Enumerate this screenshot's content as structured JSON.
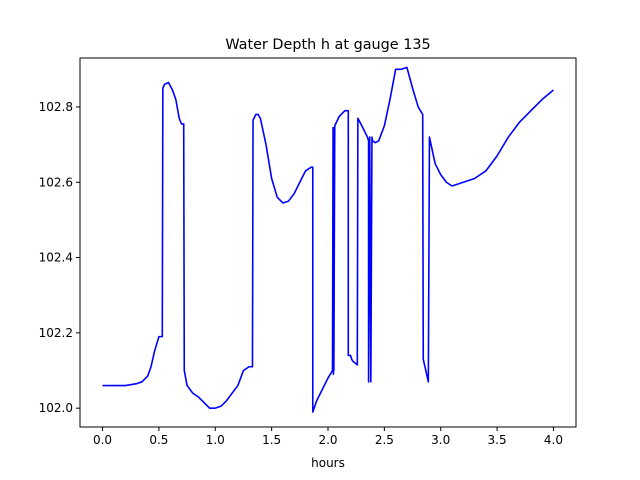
{
  "chart_data": {
    "type": "line",
    "title": "Water Depth h at gauge 135",
    "xlabel": "hours",
    "ylabel": "",
    "xlim": [
      -0.2,
      4.2
    ],
    "ylim": [
      101.95,
      102.93
    ],
    "xticks": [
      0.0,
      0.5,
      1.0,
      1.5,
      2.0,
      2.5,
      3.0,
      3.5,
      4.0
    ],
    "xtick_labels": [
      "0.0",
      "0.5",
      "1.0",
      "1.5",
      "2.0",
      "2.5",
      "3.0",
      "3.5",
      "4.0"
    ],
    "yticks": [
      102.0,
      102.2,
      102.4,
      102.6,
      102.8
    ],
    "ytick_labels": [
      "102.0",
      "102.2",
      "102.4",
      "102.6",
      "102.8"
    ],
    "grid": false,
    "line_color": "#0000ff",
    "series": [
      {
        "x": [
          0.0,
          0.2,
          0.3,
          0.35,
          0.4,
          0.43,
          0.46,
          0.5,
          0.53,
          0.535,
          0.55,
          0.585,
          0.62,
          0.65,
          0.68,
          0.7,
          0.72,
          0.725,
          0.75,
          0.8,
          0.85,
          0.9,
          0.95,
          1.0,
          1.05,
          1.1,
          1.2,
          1.25,
          1.3,
          1.33,
          1.335,
          1.36,
          1.38,
          1.4,
          1.45,
          1.5,
          1.55,
          1.6,
          1.65,
          1.7,
          1.75,
          1.8,
          1.85,
          1.865,
          1.865,
          1.9,
          1.95,
          2.0,
          2.04,
          2.045,
          2.048,
          2.05,
          2.052,
          2.06,
          2.1,
          2.15,
          2.18,
          2.18,
          2.2,
          2.21,
          2.22,
          2.24,
          2.26,
          2.265,
          2.3,
          2.35,
          2.36,
          2.36,
          2.37,
          2.38,
          2.39,
          2.395,
          2.42,
          2.45,
          2.5,
          2.55,
          2.6,
          2.65,
          2.7,
          2.75,
          2.8,
          2.84,
          2.845,
          2.89,
          2.9,
          2.95,
          3.0,
          3.05,
          3.1,
          3.15,
          3.2,
          3.3,
          3.4,
          3.5,
          3.6,
          3.7,
          3.8,
          3.9,
          4.0
        ],
        "y": [
          102.06,
          102.06,
          102.065,
          102.07,
          102.085,
          102.11,
          102.15,
          102.19,
          102.19,
          102.85,
          102.86,
          102.865,
          102.845,
          102.82,
          102.77,
          102.755,
          102.755,
          102.1,
          102.06,
          102.04,
          102.03,
          102.015,
          102.0,
          102.0,
          102.005,
          102.02,
          102.06,
          102.1,
          102.11,
          102.11,
          102.765,
          102.78,
          102.78,
          102.77,
          102.7,
          102.61,
          102.56,
          102.545,
          102.55,
          102.57,
          102.6,
          102.63,
          102.64,
          102.64,
          101.99,
          102.02,
          102.05,
          102.08,
          102.1,
          102.745,
          102.09,
          102.745,
          102.1,
          102.75,
          102.775,
          102.79,
          102.79,
          102.14,
          102.14,
          102.13,
          102.125,
          102.12,
          102.115,
          102.77,
          102.75,
          102.72,
          102.71,
          102.07,
          102.72,
          102.07,
          102.72,
          102.71,
          102.705,
          102.71,
          102.75,
          102.82,
          102.9,
          102.9,
          102.905,
          102.85,
          102.8,
          102.78,
          102.13,
          102.07,
          102.72,
          102.65,
          102.62,
          102.6,
          102.59,
          102.595,
          102.6,
          102.61,
          102.63,
          102.67,
          102.72,
          102.76,
          102.79,
          102.82,
          102.845
        ]
      }
    ]
  }
}
